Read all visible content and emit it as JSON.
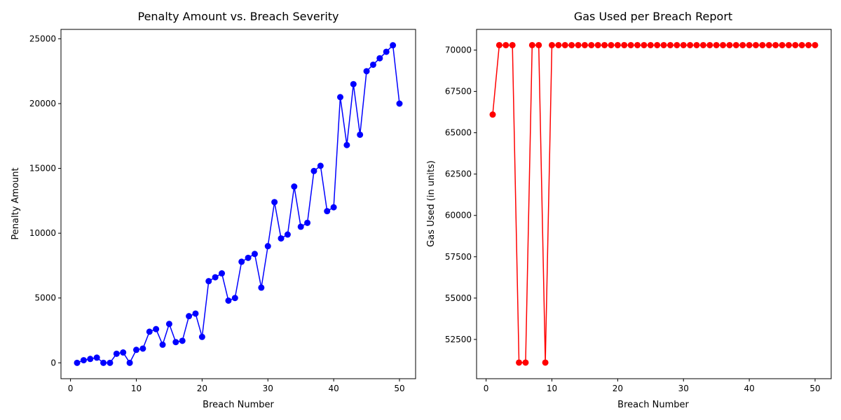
{
  "chart_data": [
    {
      "type": "line",
      "title": "Penalty Amount vs. Breach Severity",
      "xlabel": "Breach Number",
      "ylabel": "Penalty Amount",
      "xlim": [
        -1.45,
        52.45
      ],
      "ylim": [
        -1225,
        25725
      ],
      "xticks": [
        0,
        10,
        20,
        30,
        40,
        50
      ],
      "xtick_labels": [
        "0",
        "10",
        "20",
        "30",
        "40",
        "50"
      ],
      "yticks": [
        0,
        5000,
        10000,
        15000,
        20000,
        25000
      ],
      "ytick_labels": [
        "0",
        "5000",
        "10000",
        "15000",
        "20000",
        "25000"
      ],
      "grid": false,
      "color": "#0000ff",
      "marker": "circle",
      "series": [
        {
          "x": [
            1,
            2,
            3,
            4,
            5,
            6,
            7,
            8,
            9,
            10,
            11,
            12,
            13,
            14,
            15,
            16,
            17,
            18,
            19,
            20,
            21,
            22,
            23,
            24,
            25,
            26,
            27,
            28,
            29,
            30,
            31,
            32,
            33,
            34,
            35,
            36,
            37,
            38,
            39,
            40,
            41,
            42,
            43,
            44,
            45,
            46,
            47,
            48,
            49,
            50
          ],
          "values": [
            0,
            200,
            300,
            400,
            0,
            0,
            700,
            800,
            0,
            1000,
            1100,
            2400,
            2600,
            1400,
            3000,
            1600,
            1700,
            3600,
            3800,
            2000,
            6300,
            6600,
            6900,
            4800,
            5000,
            7800,
            8100,
            8400,
            5800,
            9000,
            12400,
            9600,
            9900,
            13600,
            10500,
            10800,
            14800,
            15200,
            11700,
            12000,
            20500,
            16800,
            21500,
            17600,
            22500,
            23000,
            23500,
            24000,
            24500,
            20000
          ]
        }
      ]
    },
    {
      "type": "line",
      "title": "Gas Used per Breach Report",
      "xlabel": "Breach Number",
      "ylabel": "Gas Used (in units)",
      "xlim": [
        -1.45,
        52.45
      ],
      "ylim": [
        50125,
        71250
      ],
      "xticks": [
        0,
        10,
        20,
        30,
        40,
        50
      ],
      "xtick_labels": [
        "0",
        "10",
        "20",
        "30",
        "40",
        "50"
      ],
      "yticks": [
        52500,
        55000,
        57500,
        60000,
        62500,
        65000,
        67500,
        70000
      ],
      "ytick_labels": [
        "52500",
        "55000",
        "57500",
        "60000",
        "62500",
        "65000",
        "67500",
        "70000"
      ],
      "grid": false,
      "color": "#ff0000",
      "marker": "circle",
      "series": [
        {
          "x": [
            1,
            2,
            3,
            4,
            5,
            6,
            7,
            8,
            9,
            10,
            11,
            12,
            13,
            14,
            15,
            16,
            17,
            18,
            19,
            20,
            21,
            22,
            23,
            24,
            25,
            26,
            27,
            28,
            29,
            30,
            31,
            32,
            33,
            34,
            35,
            36,
            37,
            38,
            39,
            40,
            41,
            42,
            43,
            44,
            45,
            46,
            47,
            48,
            49,
            50
          ],
          "values": [
            66100,
            70300,
            70300,
            70300,
            51100,
            51100,
            70300,
            70300,
            51100,
            70300,
            70300,
            70300,
            70300,
            70300,
            70300,
            70300,
            70300,
            70300,
            70300,
            70300,
            70300,
            70300,
            70300,
            70300,
            70300,
            70300,
            70300,
            70300,
            70300,
            70300,
            70300,
            70300,
            70300,
            70300,
            70300,
            70300,
            70300,
            70300,
            70300,
            70300,
            70300,
            70300,
            70300,
            70300,
            70300,
            70300,
            70300,
            70300,
            70300,
            70300
          ]
        }
      ]
    }
  ]
}
